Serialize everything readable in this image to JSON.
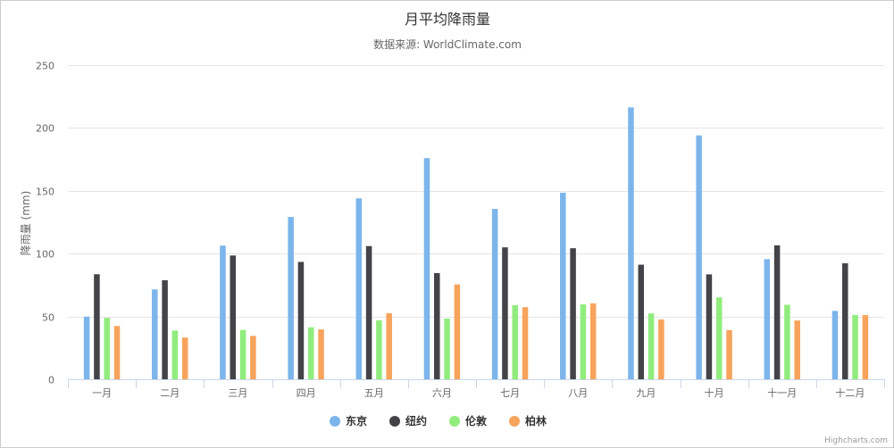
{
  "chart_data": {
    "type": "bar",
    "title": "月平均降雨量",
    "subtitle": "数据来源: WorldClimate.com",
    "ylabel": "降雨量 (mm)",
    "xlabel": "",
    "ylim": [
      0,
      250
    ],
    "yticks": [
      0,
      50,
      100,
      150,
      200,
      250
    ],
    "grid": true,
    "legend_position": "bottom-center",
    "categories": [
      "一月",
      "二月",
      "三月",
      "四月",
      "五月",
      "六月",
      "七月",
      "八月",
      "九月",
      "十月",
      "十一月",
      "十二月"
    ],
    "series": [
      {
        "name": "东京",
        "color": "#7cb5ec",
        "values": [
          49.9,
          71.5,
          106.4,
          129.2,
          144.0,
          176.0,
          135.6,
          148.5,
          216.4,
          194.1,
          95.6,
          54.4
        ]
      },
      {
        "name": "纽约",
        "color": "#434348",
        "values": [
          83.6,
          78.8,
          98.5,
          93.4,
          106.0,
          84.5,
          105.0,
          104.3,
          91.2,
          83.5,
          106.6,
          92.3
        ]
      },
      {
        "name": "伦敦",
        "color": "#90ed7d",
        "values": [
          48.9,
          38.8,
          39.3,
          41.4,
          47.0,
          48.3,
          59.0,
          59.6,
          52.4,
          65.2,
          59.3,
          51.2
        ]
      },
      {
        "name": "柏林",
        "color": "#f7a35c",
        "values": [
          42.4,
          33.2,
          34.5,
          39.7,
          52.6,
          75.5,
          57.4,
          60.4,
          47.6,
          39.1,
          46.8,
          51.1
        ]
      }
    ]
  },
  "credits": "Highcharts.com"
}
